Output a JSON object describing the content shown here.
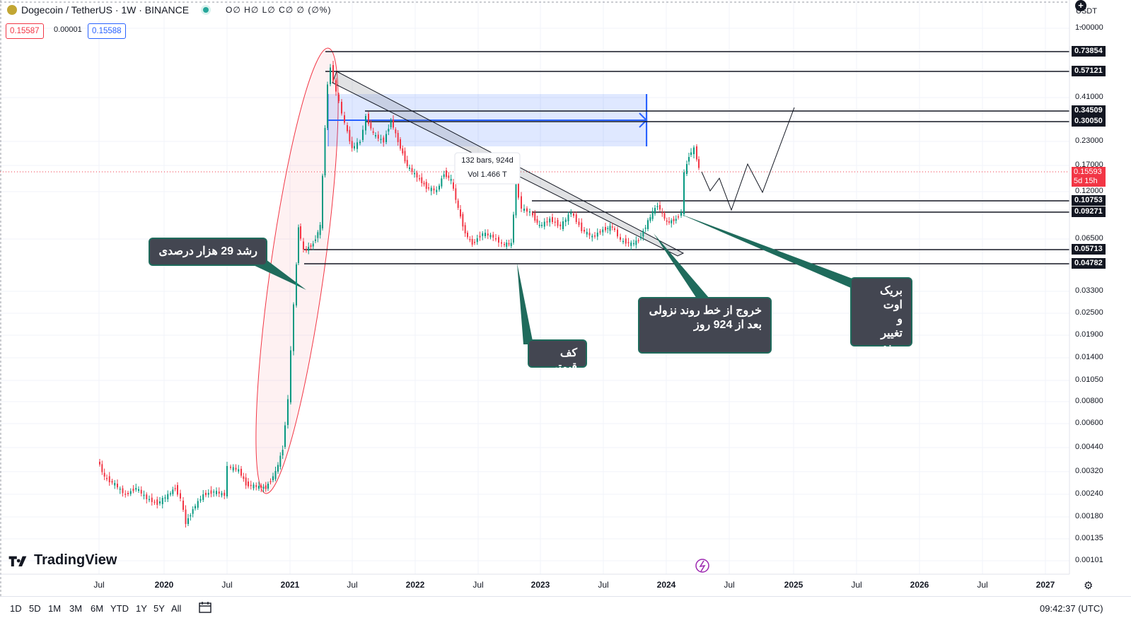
{
  "header": {
    "symbol_title": "Dogecoin / TetherUS · 1W · BINANCE",
    "ohlc_text": "O∅ H∅ L∅ C∅ ∅ (∅%)",
    "bid": "0.15587",
    "spread": "0.00001",
    "ask": "0.15588",
    "currency": "USDT",
    "currency_icon": "chevron-down-icon"
  },
  "price_scale": {
    "ticks": [
      "1.00000",
      "0.41000",
      "0.23000",
      "0.17000",
      "0.12000",
      "0.06500",
      "0.03300",
      "0.02500",
      "0.01900",
      "0.01400",
      "0.01050",
      "0.00800",
      "0.00600",
      "0.00440",
      "0.00320",
      "0.00240",
      "0.00180",
      "0.00135",
      "0.00101"
    ],
    "levels": [
      "0.73854",
      "0.57121",
      "0.34509",
      "0.30050",
      "0.10753",
      "0.09271",
      "0.05713",
      "0.04782"
    ],
    "current_price": "0.15593",
    "countdown": "5d 15h"
  },
  "time_axis": [
    {
      "label": "Jul",
      "bold": false
    },
    {
      "label": "2020",
      "bold": true
    },
    {
      "label": "Jul",
      "bold": false
    },
    {
      "label": "2021",
      "bold": true
    },
    {
      "label": "Jul",
      "bold": false
    },
    {
      "label": "2022",
      "bold": true
    },
    {
      "label": "Jul",
      "bold": false
    },
    {
      "label": "2023",
      "bold": true
    },
    {
      "label": "Jul",
      "bold": false
    },
    {
      "label": "2024",
      "bold": true
    },
    {
      "label": "Jul",
      "bold": false
    },
    {
      "label": "2025",
      "bold": true
    },
    {
      "label": "Jul",
      "bold": false
    },
    {
      "label": "2026",
      "bold": true
    },
    {
      "label": "Jul",
      "bold": false
    },
    {
      "label": "2027",
      "bold": true
    }
  ],
  "measure": {
    "bars": "132 bars, 924d",
    "vol": "Vol 1.466 T"
  },
  "callouts": {
    "growth": "رشد 29 هزار درصدی",
    "floor": "کف قیمتی",
    "exit_line1": "خروج  از خط روند نزولی",
    "exit_line2": "بعد از 924 روز",
    "breakout_line1": "بریک اوت",
    "breakout_line2": "و",
    "breakout_line3": "تغییر روند"
  },
  "branding": {
    "logo_text": "TradingView"
  },
  "bottom_bar": {
    "ranges": [
      "1D",
      "5D",
      "1M",
      "3M",
      "6M",
      "YTD",
      "1Y",
      "5Y",
      "All"
    ],
    "goto_icon": "calendar-icon",
    "clock": "09:42:37 (UTC)",
    "settings_icon": "gear-icon"
  },
  "colors": {
    "up": "#089981",
    "down": "#f23645",
    "box": "#2962ff",
    "callout_bg": "#434651",
    "callout_border": "#1f6b5c"
  }
}
